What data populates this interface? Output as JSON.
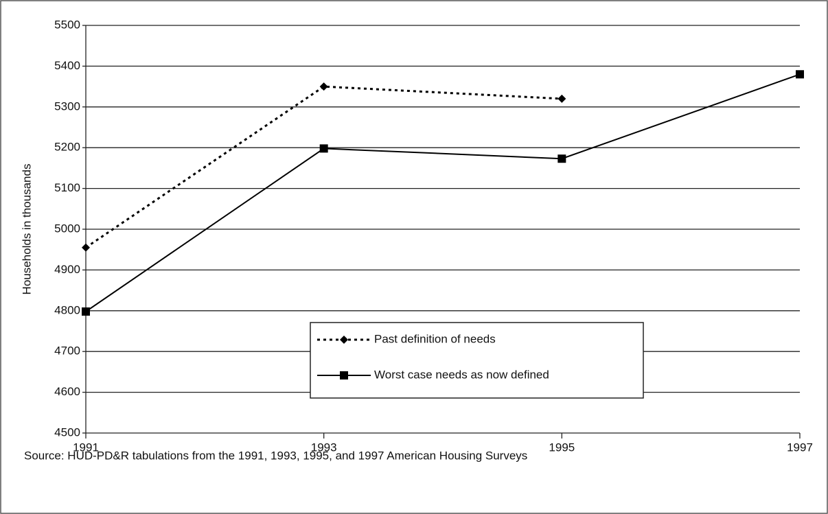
{
  "chart_data": {
    "type": "line",
    "y_label": "Households in thousands",
    "source": "Source: HUD-PD&R tabulations from the 1991, 1993, 1995, and 1997 American Housing Surveys",
    "x": [
      1991,
      1993,
      1995,
      1997
    ],
    "xlim": [
      1991,
      1997
    ],
    "xticks": [
      1991,
      1993,
      1995,
      1997
    ],
    "ylim": [
      4500,
      5500
    ],
    "yticks": [
      4500,
      4600,
      4700,
      4800,
      4900,
      5000,
      5100,
      5200,
      5300,
      5400,
      5500
    ],
    "grid": true,
    "series": [
      {
        "name": "Past definition of needs",
        "color": "#000000",
        "line_style": "dotted",
        "marker": "diamond",
        "values": [
          4955,
          5350,
          5320,
          null
        ]
      },
      {
        "name": "Worst case needs as now defined",
        "color": "#000000",
        "line_style": "solid",
        "marker": "square",
        "values": [
          4798,
          5198,
          5173,
          5380
        ]
      }
    ]
  }
}
